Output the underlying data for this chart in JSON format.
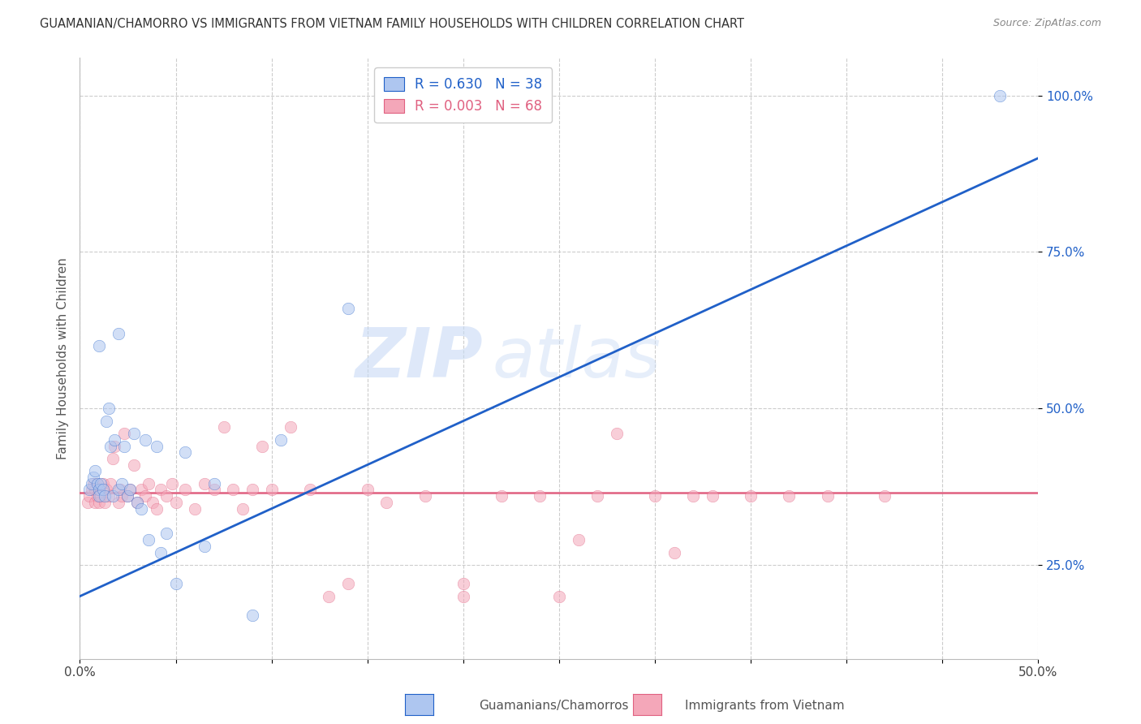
{
  "title": "GUAMANIAN/CHAMORRO VS IMMIGRANTS FROM VIETNAM FAMILY HOUSEHOLDS WITH CHILDREN CORRELATION CHART",
  "source": "Source: ZipAtlas.com",
  "ylabel": "Family Households with Children",
  "xlim": [
    0.0,
    0.5
  ],
  "ylim": [
    0.1,
    1.06
  ],
  "xticks": [
    0.0,
    0.05,
    0.1,
    0.15,
    0.2,
    0.25,
    0.3,
    0.35,
    0.4,
    0.45,
    0.5
  ],
  "xticklabels": [
    "0.0%",
    "",
    "",
    "",
    "",
    "",
    "",
    "",
    "",
    "",
    "50.0%"
  ],
  "yticks": [
    0.25,
    0.5,
    0.75,
    1.0
  ],
  "yticklabels": [
    "25.0%",
    "50.0%",
    "75.0%",
    "100.0%"
  ],
  "legend1_label": "R = 0.630   N = 38",
  "legend2_label": "R = 0.003   N = 68",
  "legend1_color": "#aec6f0",
  "legend2_color": "#f4a7b9",
  "trendline1_color": "#2060c8",
  "trendline2_color": "#e06080",
  "grid_color": "#cccccc",
  "watermark_zip": "ZIP",
  "watermark_atlas": "atlas",
  "blue_trendline_x": [
    0.0,
    0.5
  ],
  "blue_trendline_y": [
    0.2,
    0.9
  ],
  "pink_trendline_x": [
    0.0,
    0.5
  ],
  "pink_trendline_y": [
    0.365,
    0.365
  ],
  "blue_x": [
    0.005,
    0.006,
    0.007,
    0.008,
    0.009,
    0.01,
    0.01,
    0.01,
    0.011,
    0.012,
    0.013,
    0.014,
    0.015,
    0.016,
    0.017,
    0.018,
    0.02,
    0.02,
    0.022,
    0.023,
    0.025,
    0.026,
    0.028,
    0.03,
    0.032,
    0.034,
    0.036,
    0.04,
    0.042,
    0.045,
    0.05,
    0.055,
    0.065,
    0.07,
    0.09,
    0.105,
    0.14,
    0.48
  ],
  "blue_y": [
    0.37,
    0.38,
    0.39,
    0.4,
    0.38,
    0.37,
    0.36,
    0.6,
    0.38,
    0.37,
    0.36,
    0.48,
    0.5,
    0.44,
    0.36,
    0.45,
    0.37,
    0.62,
    0.38,
    0.44,
    0.36,
    0.37,
    0.46,
    0.35,
    0.34,
    0.45,
    0.29,
    0.44,
    0.27,
    0.3,
    0.22,
    0.43,
    0.28,
    0.38,
    0.17,
    0.45,
    0.66,
    1.0
  ],
  "pink_x": [
    0.004,
    0.005,
    0.006,
    0.007,
    0.008,
    0.008,
    0.009,
    0.009,
    0.01,
    0.01,
    0.011,
    0.012,
    0.013,
    0.014,
    0.015,
    0.016,
    0.017,
    0.018,
    0.02,
    0.021,
    0.022,
    0.023,
    0.025,
    0.026,
    0.028,
    0.03,
    0.032,
    0.034,
    0.036,
    0.038,
    0.04,
    0.042,
    0.045,
    0.048,
    0.05,
    0.055,
    0.06,
    0.065,
    0.07,
    0.075,
    0.08,
    0.085,
    0.09,
    0.095,
    0.1,
    0.11,
    0.12,
    0.13,
    0.14,
    0.15,
    0.16,
    0.18,
    0.2,
    0.22,
    0.24,
    0.26,
    0.27,
    0.28,
    0.3,
    0.31,
    0.32,
    0.33,
    0.35,
    0.37,
    0.39,
    0.2,
    0.25,
    0.42
  ],
  "pink_y": [
    0.35,
    0.36,
    0.37,
    0.38,
    0.35,
    0.37,
    0.36,
    0.38,
    0.35,
    0.37,
    0.36,
    0.38,
    0.35,
    0.37,
    0.36,
    0.38,
    0.42,
    0.44,
    0.35,
    0.37,
    0.36,
    0.46,
    0.36,
    0.37,
    0.41,
    0.35,
    0.37,
    0.36,
    0.38,
    0.35,
    0.34,
    0.37,
    0.36,
    0.38,
    0.35,
    0.37,
    0.34,
    0.38,
    0.37,
    0.47,
    0.37,
    0.34,
    0.37,
    0.44,
    0.37,
    0.47,
    0.37,
    0.2,
    0.22,
    0.37,
    0.35,
    0.36,
    0.2,
    0.36,
    0.36,
    0.29,
    0.36,
    0.46,
    0.36,
    0.27,
    0.36,
    0.36,
    0.36,
    0.36,
    0.36,
    0.22,
    0.2,
    0.36
  ],
  "dot_size": 110,
  "dot_alpha": 0.55,
  "figsize": [
    14.06,
    8.92
  ],
  "dpi": 100
}
